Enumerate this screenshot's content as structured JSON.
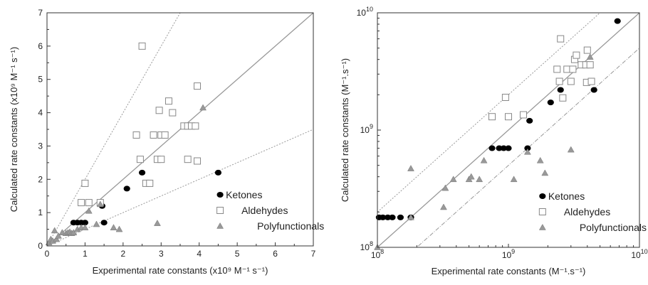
{
  "chart_data": [
    {
      "type": "scatter",
      "scale": "linear",
      "title": "",
      "xlabel": "Experimental rate constants (x10⁹ M⁻¹ s⁻¹)",
      "ylabel": "Calculated rate constants (x10⁹ M⁻¹ s⁻¹)",
      "xlim": [
        0,
        7
      ],
      "ylim": [
        0,
        7
      ],
      "xticks": [
        "0",
        "1",
        "2",
        "3",
        "4",
        "5",
        "6",
        "7"
      ],
      "yticks": [
        "0",
        "1",
        "2",
        "3",
        "4",
        "5",
        "6",
        "7"
      ],
      "legend_position": "bottom-right",
      "reference_lines": [
        {
          "style": "solid",
          "slope": 1
        },
        {
          "style": "dotted",
          "slope": 2
        },
        {
          "style": "dotted",
          "slope": 0.5
        }
      ],
      "series": [
        {
          "name": "Ketones",
          "marker": "filled-circle",
          "color": "#000000",
          "points": [
            [
              0.7,
              0.7
            ],
            [
              0.8,
              0.7
            ],
            [
              0.9,
              0.7
            ],
            [
              1.0,
              0.7
            ],
            [
              1.5,
              0.7
            ],
            [
              1.45,
              1.2
            ],
            [
              2.1,
              1.72
            ],
            [
              2.5,
              2.2
            ],
            [
              4.5,
              2.2
            ]
          ]
        },
        {
          "name": "Aldehydes",
          "marker": "open-square",
          "color": "#888888",
          "points": [
            [
              0.9,
              1.3
            ],
            [
              1.1,
              1.3
            ],
            [
              1.4,
              1.3
            ],
            [
              1.0,
              1.88
            ],
            [
              2.35,
              3.33
            ],
            [
              2.5,
              6.0
            ],
            [
              2.45,
              2.6
            ],
            [
              2.6,
              1.88
            ],
            [
              2.7,
              1.88
            ],
            [
              2.8,
              3.33
            ],
            [
              2.9,
              2.6
            ],
            [
              3.0,
              2.6
            ],
            [
              3.0,
              3.33
            ],
            [
              3.1,
              3.33
            ],
            [
              2.95,
              4.07
            ],
            [
              3.2,
              4.35
            ],
            [
              3.3,
              4.0
            ],
            [
              3.6,
              3.6
            ],
            [
              3.7,
              3.6
            ],
            [
              3.8,
              3.6
            ],
            [
              3.9,
              3.6
            ],
            [
              3.7,
              2.6
            ],
            [
              3.95,
              2.55
            ],
            [
              3.95,
              4.8
            ]
          ]
        },
        {
          "name": "Polyfunctionals",
          "marker": "filled-triangle",
          "color": "#999999",
          "points": [
            [
              0.05,
              0.1
            ],
            [
              0.1,
              0.2
            ],
            [
              0.15,
              0.15
            ],
            [
              0.2,
              0.46
            ],
            [
              0.25,
              0.2
            ],
            [
              0.3,
              0.3
            ],
            [
              0.4,
              0.4
            ],
            [
              0.5,
              0.38
            ],
            [
              0.55,
              0.4
            ],
            [
              0.6,
              0.42
            ],
            [
              0.65,
              0.38
            ],
            [
              0.7,
              0.4
            ],
            [
              0.8,
              0.5
            ],
            [
              0.9,
              0.55
            ],
            [
              1.0,
              0.55
            ],
            [
              1.1,
              1.05
            ],
            [
              1.3,
              0.65
            ],
            [
              1.4,
              1.25
            ],
            [
              1.75,
              0.55
            ],
            [
              1.9,
              0.5
            ],
            [
              2.9,
              0.68
            ],
            [
              4.1,
              4.15
            ]
          ]
        }
      ]
    },
    {
      "type": "scatter",
      "scale": "log",
      "title": "",
      "xlabel": "Experimental rate constants (M⁻¹.s⁻¹)",
      "ylabel": "Calculated rate constants (M⁻¹.s⁻¹)",
      "xlim": [
        100000000.0,
        10000000000.0
      ],
      "ylim": [
        100000000.0,
        10000000000.0
      ],
      "xticks": [
        {
          "base": "10",
          "exp": "8"
        },
        {
          "base": "10",
          "exp": "9"
        },
        {
          "base": "10",
          "exp": "10"
        }
      ],
      "yticks": [
        {
          "base": "10",
          "exp": "8"
        },
        {
          "base": "10",
          "exp": "9"
        },
        {
          "base": "10",
          "exp": "10"
        }
      ],
      "legend_position": "bottom-right",
      "reference_lines": [
        {
          "style": "solid",
          "factor": 1
        },
        {
          "style": "dotted",
          "factor": 2
        },
        {
          "style": "dashdot",
          "factor": 0.5
        }
      ],
      "series": [
        {
          "name": "Ketones",
          "marker": "filled-circle",
          "color": "#000000",
          "points": [
            [
              103000000.0,
              180000000.0
            ],
            [
              110000000.0,
              180000000.0
            ],
            [
              120000000.0,
              180000000.0
            ],
            [
              130000000.0,
              180000000.0
            ],
            [
              150000000.0,
              180000000.0
            ],
            [
              180000000.0,
              180000000.0
            ],
            [
              750000000.0,
              700000000.0
            ],
            [
              850000000.0,
              700000000.0
            ],
            [
              920000000.0,
              700000000.0
            ],
            [
              1000000000.0,
              700000000.0
            ],
            [
              1400000000.0,
              700000000.0
            ],
            [
              1450000000.0,
              1200000000.0
            ],
            [
              2100000000.0,
              1720000000.0
            ],
            [
              2500000000.0,
              2200000000.0
            ],
            [
              4500000000.0,
              2200000000.0
            ],
            [
              6800000000.0,
              8500000000.0
            ]
          ]
        },
        {
          "name": "Aldehydes",
          "marker": "open-square",
          "color": "#888888",
          "points": [
            [
              750000000.0,
              1300000000.0
            ],
            [
              950000000.0,
              1900000000.0
            ],
            [
              1000000000.0,
              1300000000.0
            ],
            [
              1300000000.0,
              1350000000.0
            ],
            [
              2350000000.0,
              3300000000.0
            ],
            [
              2500000000.0,
              6000000000.0
            ],
            [
              2450000000.0,
              2600000000.0
            ],
            [
              2600000000.0,
              1880000000.0
            ],
            [
              2800000000.0,
              3300000000.0
            ],
            [
              3000000000.0,
              2600000000.0
            ],
            [
              3100000000.0,
              3300000000.0
            ],
            [
              3200000000.0,
              4000000000.0
            ],
            [
              3300000000.0,
              4350000000.0
            ],
            [
              3600000000.0,
              3600000000.0
            ],
            [
              3900000000.0,
              3600000000.0
            ],
            [
              3950000000.0,
              2550000000.0
            ],
            [
              4000000000.0,
              4800000000.0
            ],
            [
              4200000000.0,
              3600000000.0
            ],
            [
              4300000000.0,
              2600000000.0
            ]
          ]
        },
        {
          "name": "Polyfunctionals",
          "marker": "filled-triangle",
          "color": "#999999",
          "points": [
            [
              100000000.0,
              100000000.0
            ],
            [
              180000000.0,
              180000000.0
            ],
            [
              180000000.0,
              470000000.0
            ],
            [
              320000000.0,
              220000000.0
            ],
            [
              330000000.0,
              320000000.0
            ],
            [
              380000000.0,
              380000000.0
            ],
            [
              500000000.0,
              380000000.0
            ],
            [
              520000000.0,
              400000000.0
            ],
            [
              600000000.0,
              380000000.0
            ],
            [
              650000000.0,
              550000000.0
            ],
            [
              1100000000.0,
              380000000.0
            ],
            [
              1400000000.0,
              650000000.0
            ],
            [
              1750000000.0,
              550000000.0
            ],
            [
              1900000000.0,
              430000000.0
            ],
            [
              3000000000.0,
              680000000.0
            ],
            [
              4200000000.0,
              4200000000.0
            ]
          ]
        }
      ]
    }
  ]
}
